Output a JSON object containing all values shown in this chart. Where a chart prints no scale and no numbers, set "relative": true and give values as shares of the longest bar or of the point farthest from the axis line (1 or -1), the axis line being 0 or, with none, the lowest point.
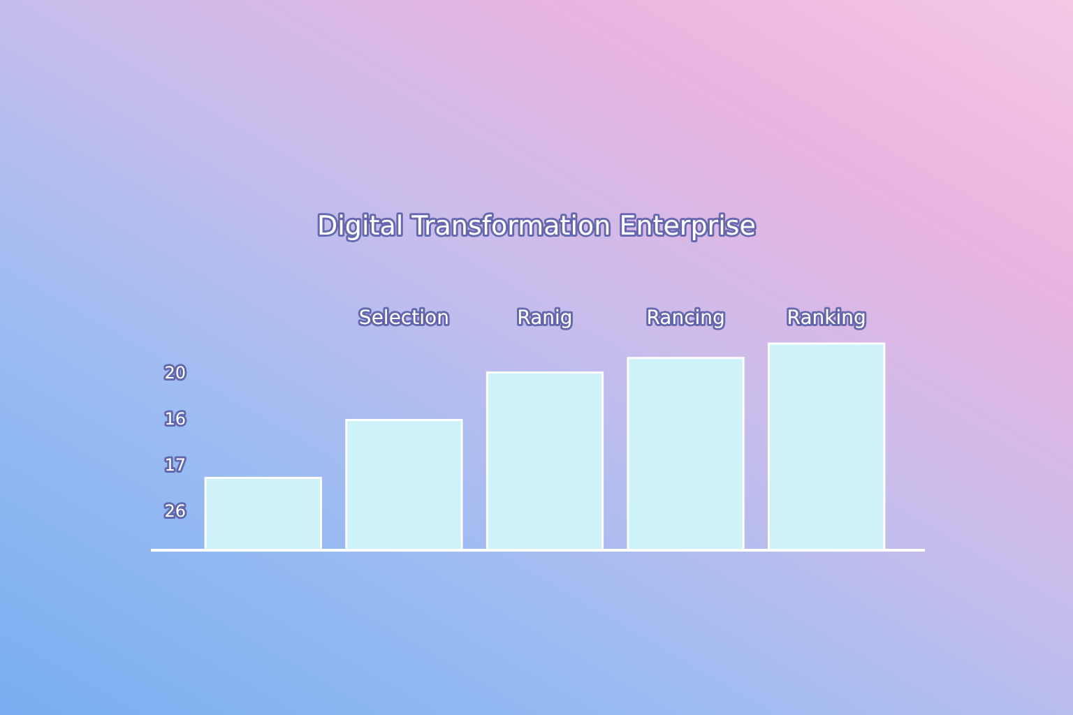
{
  "chart_data": {
    "type": "bar",
    "title": "Digital Transformation Enterprise",
    "categories": [
      null,
      "Selection",
      "Ranig",
      "Rancing",
      "Ranking"
    ],
    "values": [
      0.35,
      0.63,
      0.86,
      0.93,
      1
    ],
    "color": "#cdf3f8",
    "relative": true,
    "annotations": [
      "20",
      "16",
      "17",
      "26"
    ]
  }
}
